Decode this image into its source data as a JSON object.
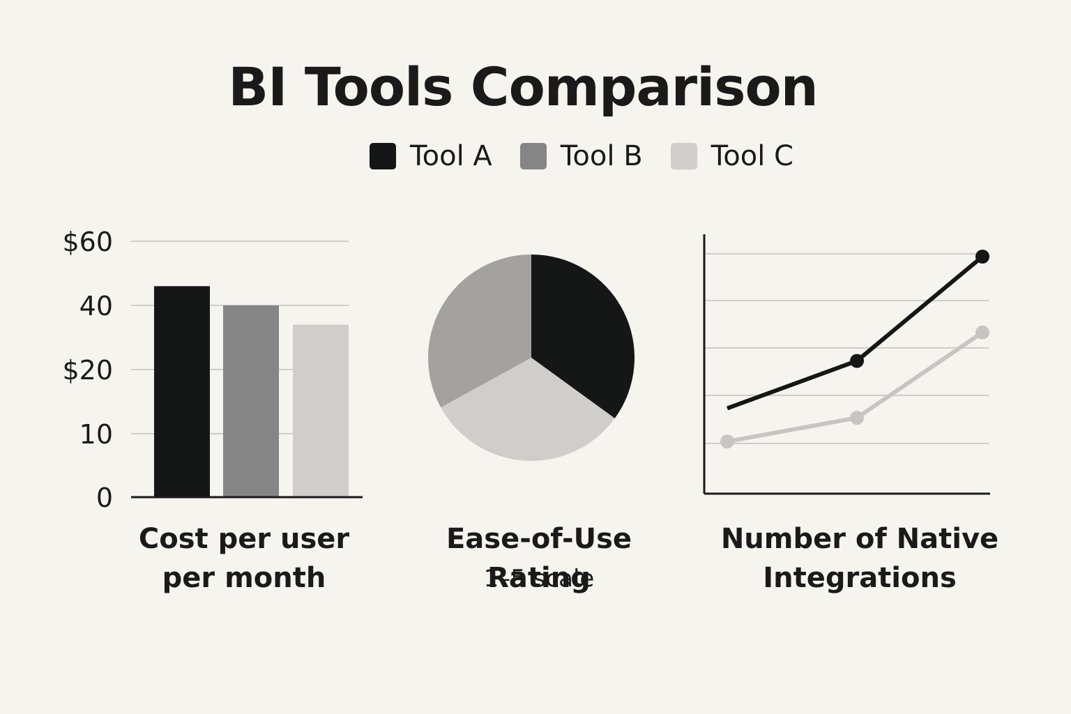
{
  "title": "BI Tools Comparison",
  "legend": [
    {
      "label": "Tool A",
      "color": "#151616"
    },
    {
      "label": "Tool B",
      "color": "#858585"
    },
    {
      "label": "Tool C",
      "color": "#cfceca"
    }
  ],
  "captions": {
    "bar": [
      "Cost per user",
      "per month"
    ],
    "pie_title": "Ease-of-Use Rating",
    "pie_sub": "1–5 scale",
    "line": [
      "Number of Native",
      "Integrations"
    ]
  },
  "chart_data": [
    {
      "type": "bar",
      "title": "Cost per user per month",
      "categories": [
        "Tool A",
        "Tool B",
        "Tool C"
      ],
      "values": [
        46,
        40,
        34
      ],
      "yticks": [
        0,
        10,
        20,
        40,
        60
      ],
      "ytick_labels": [
        "0",
        "10",
        "$20",
        "40",
        "$60"
      ],
      "xlabel": "",
      "ylabel": "",
      "grid": true
    },
    {
      "type": "pie",
      "title": "Ease-of-Use Rating",
      "subtitle": "1–5 scale",
      "labels": [
        "Tool A",
        "Tool C",
        "Tool B"
      ],
      "values": [
        0.35,
        0.32,
        0.33
      ],
      "colors": [
        "#151616",
        "#cfceca",
        "#a3a29f"
      ]
    },
    {
      "type": "line",
      "title": "Number of Native Integrations",
      "x": [
        1,
        2,
        3
      ],
      "ylim": [
        0,
        6
      ],
      "series": [
        {
          "name": "Tool A",
          "values": [
            1.8,
            2.8,
            5.0
          ],
          "markers": [
            false,
            true,
            true
          ],
          "color": "#151616"
        },
        {
          "name": "Tool C",
          "values": [
            1.1,
            1.6,
            3.4
          ],
          "markers": [
            true,
            true,
            true
          ],
          "color": "#c6c5c1"
        }
      ],
      "grid": true,
      "tick_labels": false
    }
  ]
}
